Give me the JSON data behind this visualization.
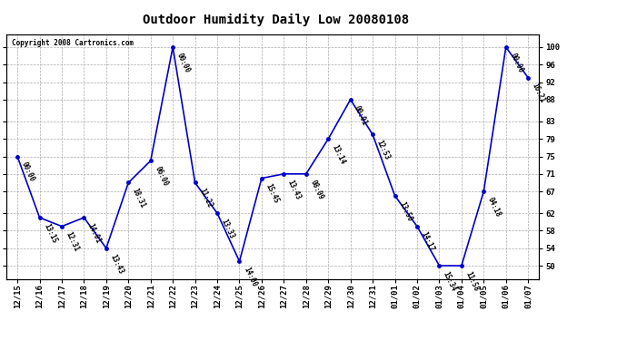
{
  "title": "Outdoor Humidity Daily Low 20080108",
  "copyright": "Copyright 2008 Cartronics.com",
  "background_color": "#ffffff",
  "line_color": "#0000cc",
  "grid_color": "#aaaaaa",
  "points": [
    {
      "date": "12/15",
      "time": "00:00",
      "value": 75
    },
    {
      "date": "12/16",
      "time": "13:15",
      "value": 61
    },
    {
      "date": "12/17",
      "time": "12:31",
      "value": 59
    },
    {
      "date": "12/18",
      "time": "14:01",
      "value": 61
    },
    {
      "date": "12/19",
      "time": "13:43",
      "value": 54
    },
    {
      "date": "12/20",
      "time": "18:31",
      "value": 69
    },
    {
      "date": "12/21",
      "time": "06:00",
      "value": 74
    },
    {
      "date": "12/22",
      "time": "00:00",
      "value": 100
    },
    {
      "date": "12/23",
      "time": "11:22",
      "value": 69
    },
    {
      "date": "12/24",
      "time": "13:33",
      "value": 62
    },
    {
      "date": "12/25",
      "time": "14:00",
      "value": 51
    },
    {
      "date": "12/26",
      "time": "15:45",
      "value": 70
    },
    {
      "date": "12/27",
      "time": "13:43",
      "value": 71
    },
    {
      "date": "12/28",
      "time": "08:09",
      "value": 71
    },
    {
      "date": "12/29",
      "time": "13:14",
      "value": 79
    },
    {
      "date": "12/30",
      "time": "00:01",
      "value": 88
    },
    {
      "date": "12/31",
      "time": "12:53",
      "value": 80
    },
    {
      "date": "01/01",
      "time": "13:50",
      "value": 66
    },
    {
      "date": "01/02",
      "time": "14:17",
      "value": 59
    },
    {
      "date": "01/03",
      "time": "15:34",
      "value": 50
    },
    {
      "date": "01/04",
      "time": "11:58",
      "value": 50
    },
    {
      "date": "01/05",
      "time": "04:18",
      "value": 67
    },
    {
      "date": "01/06",
      "time": "00:00",
      "value": 100
    },
    {
      "date": "01/07",
      "time": "16:21",
      "value": 93
    }
  ],
  "yticks": [
    50,
    54,
    58,
    62,
    67,
    71,
    75,
    79,
    83,
    88,
    92,
    96,
    100
  ],
  "ylim": [
    47,
    103
  ],
  "figsize": [
    6.9,
    3.75
  ],
  "dpi": 100,
  "title_fontsize": 10,
  "tick_fontsize": 6.5,
  "annot_fontsize": 5.5
}
